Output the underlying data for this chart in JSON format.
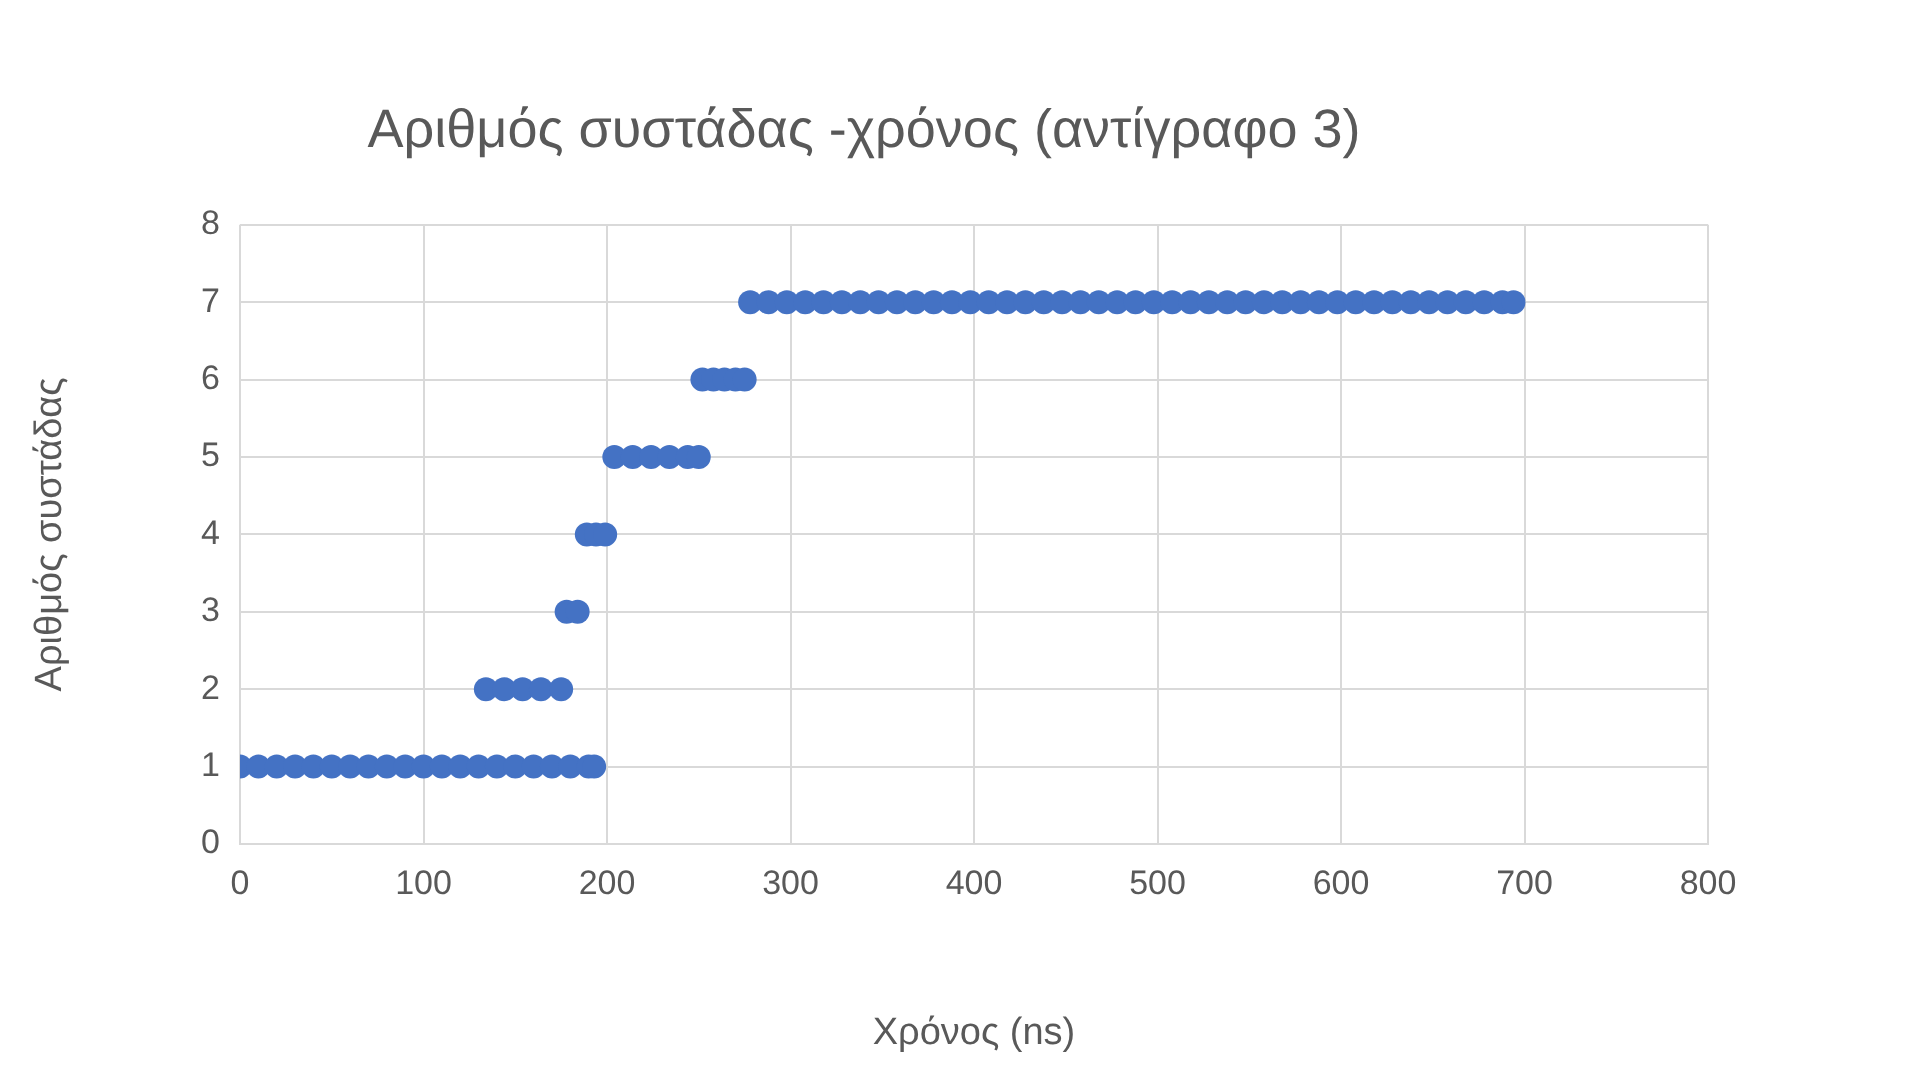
{
  "chart_data": {
    "type": "scatter",
    "title": "Αριθμός συστάδας -χρόνος (αντίγραφο 3)",
    "xlabel": "Χρόνος (ns)",
    "ylabel": "Αριθμός συστάδας",
    "x": [
      0,
      10,
      20,
      30,
      40,
      50,
      60,
      70,
      80,
      90,
      100,
      110,
      120,
      130,
      140,
      150,
      160,
      170,
      180,
      190,
      193,
      134,
      144,
      154,
      164,
      175,
      178,
      184,
      189,
      194,
      199,
      204,
      214,
      224,
      234,
      244,
      250,
      252,
      258,
      264,
      270,
      275,
      278,
      288,
      298,
      308,
      318,
      328,
      338,
      348,
      358,
      368,
      378,
      388,
      398,
      408,
      418,
      428,
      438,
      448,
      458,
      468,
      478,
      488,
      498,
      508,
      518,
      528,
      538,
      548,
      558,
      568,
      578,
      588,
      598,
      608,
      618,
      628,
      638,
      648,
      658,
      668,
      678,
      688,
      694
    ],
    "values": [
      1,
      1,
      1,
      1,
      1,
      1,
      1,
      1,
      1,
      1,
      1,
      1,
      1,
      1,
      1,
      1,
      1,
      1,
      1,
      1,
      1,
      2,
      2,
      2,
      2,
      2,
      3,
      3,
      4,
      4,
      4,
      5,
      5,
      5,
      5,
      5,
      5,
      6,
      6,
      6,
      6,
      6,
      7,
      7,
      7,
      7,
      7,
      7,
      7,
      7,
      7,
      7,
      7,
      7,
      7,
      7,
      7,
      7,
      7,
      7,
      7,
      7,
      7,
      7,
      7,
      7,
      7,
      7,
      7,
      7,
      7,
      7,
      7,
      7,
      7,
      7,
      7,
      7,
      7,
      7,
      7,
      7,
      7,
      7,
      7
    ],
    "color": "#4472c4",
    "marker": "circle",
    "grid": true,
    "legend": false,
    "xlim": [
      0,
      800
    ],
    "xticks": [
      0,
      100,
      200,
      300,
      400,
      500,
      600,
      700,
      800
    ],
    "ylim": [
      0,
      8
    ],
    "yticks": [
      0,
      1,
      2,
      3,
      4,
      5,
      6,
      7,
      8
    ]
  }
}
